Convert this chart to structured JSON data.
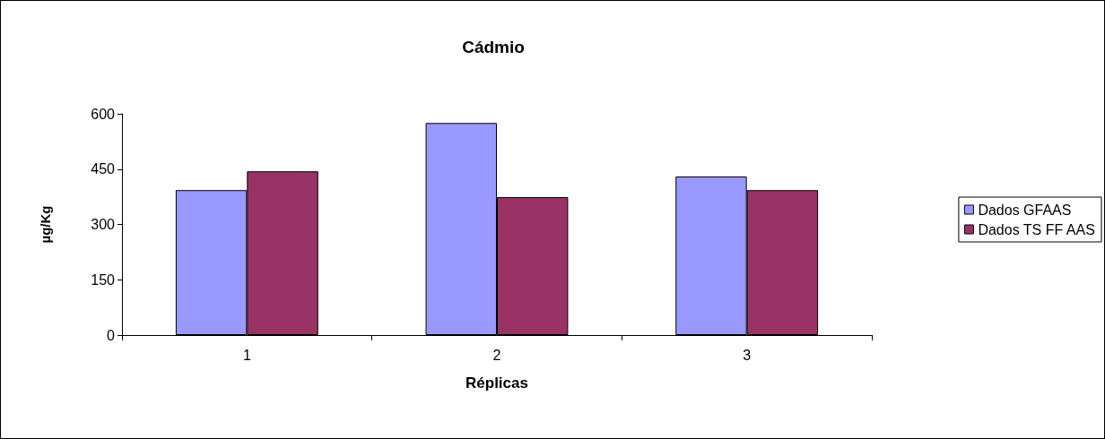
{
  "chart_data": {
    "type": "bar",
    "title": "Cádmio",
    "xlabel": "Réplicas",
    "ylabel": "µg/Kg",
    "categories": [
      "1",
      "2",
      "3"
    ],
    "series": [
      {
        "name": "Dados GFAAS",
        "color": "#9999ff",
        "values": [
          393,
          575,
          430
        ]
      },
      {
        "name": "Dados TS FF AAS",
        "color": "#993366",
        "values": [
          444,
          374,
          393
        ]
      }
    ],
    "ylim": [
      0,
      600
    ],
    "yticks": [
      0,
      150,
      300,
      450,
      600
    ],
    "grid": false,
    "legend": "right"
  }
}
